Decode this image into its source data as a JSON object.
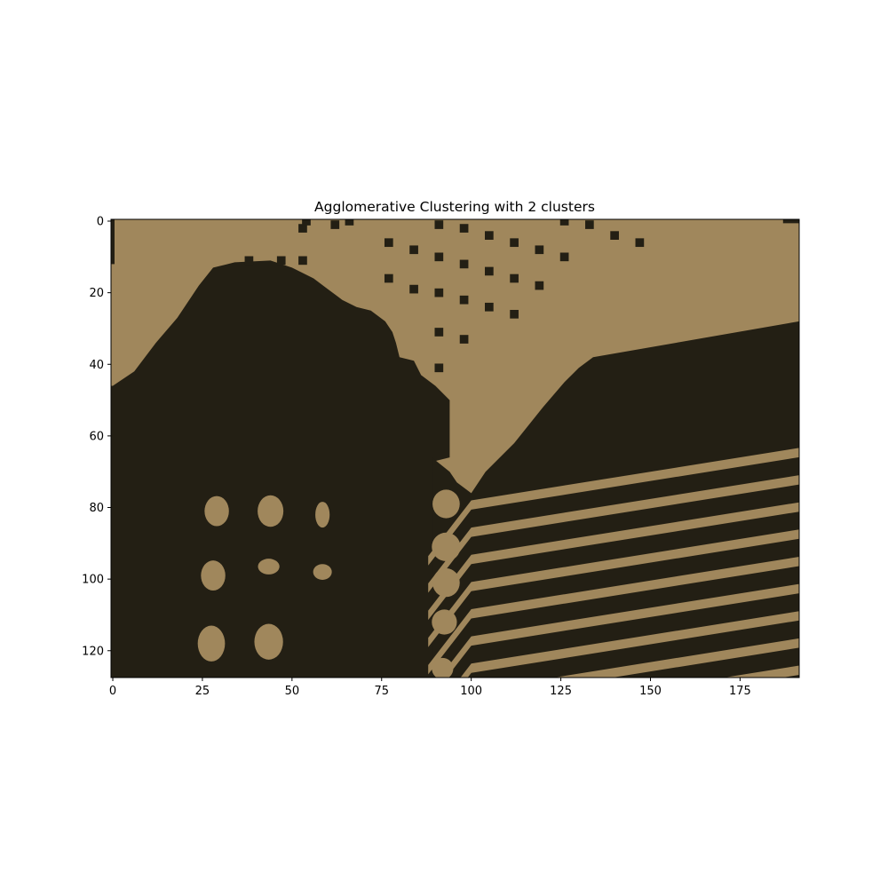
{
  "chart_data": {
    "type": "heatmap",
    "title": "Agglomerative Clustering with 2 clusters",
    "xlabel": "",
    "ylabel": "",
    "image_width": 192,
    "image_height": 128,
    "xlim": [
      -0.5,
      191.5
    ],
    "ylim": [
      127.5,
      -0.5
    ],
    "x_ticks": [
      0,
      25,
      50,
      75,
      100,
      125,
      150,
      175
    ],
    "y_ticks": [
      0,
      20,
      40,
      60,
      80,
      100,
      120
    ],
    "grid": false,
    "legend": "none",
    "colors": {
      "cluster_light": "#a0875c",
      "cluster_dark": "#231f14"
    },
    "cluster_regions": {
      "background": "cluster_light",
      "dark_shapes": [
        {
          "name": "left-building",
          "polygon": [
            [
              0,
              46
            ],
            [
              6,
              42
            ],
            [
              12,
              34
            ],
            [
              18,
              27
            ],
            [
              24,
              18
            ],
            [
              28,
              13
            ],
            [
              34,
              11.5
            ],
            [
              44,
              11
            ],
            [
              50,
              13
            ],
            [
              56,
              16
            ],
            [
              60,
              19
            ],
            [
              64,
              22
            ],
            [
              68,
              24
            ],
            [
              72,
              25
            ],
            [
              76,
              28
            ],
            [
              78,
              31
            ],
            [
              79,
              34
            ],
            [
              80,
              38
            ],
            [
              84,
              39
            ],
            [
              86,
              43
            ],
            [
              90,
              46
            ],
            [
              94,
              50
            ],
            [
              94,
              66
            ],
            [
              90,
              67
            ],
            [
              90,
              127.5
            ],
            [
              -0.5,
              127.5
            ],
            [
              -0.5,
              46
            ]
          ]
        },
        {
          "name": "lower-middle-wedge",
          "polygon": [
            [
              89,
              66
            ],
            [
              94,
              70
            ],
            [
              96,
              73
            ],
            [
              100,
              76
            ],
            [
              104,
              70
            ],
            [
              112,
              62
            ],
            [
              120,
              52
            ],
            [
              126,
              45
            ],
            [
              130,
              41
            ],
            [
              134,
              38
            ],
            [
              191.5,
              28
            ],
            [
              191.5,
              127.5
            ],
            [
              89,
              127.5
            ]
          ]
        },
        {
          "name": "left-edge-strip",
          "polygon": [
            [
              -0.5,
              -0.5
            ],
            [
              0.5,
              -0.5
            ],
            [
              0.5,
              12
            ],
            [
              -0.5,
              12
            ]
          ]
        },
        {
          "name": "top-corner",
          "polygon": [
            [
              187,
              -0.5
            ],
            [
              191.5,
              -0.5
            ],
            [
              191.5,
              0.6
            ],
            [
              187,
              0.6
            ]
          ]
        }
      ],
      "light_shapes": [
        {
          "type": "ellipse",
          "cx": 29,
          "cy": 81,
          "rx": 3.4,
          "ry": 4.2
        },
        {
          "type": "ellipse",
          "cx": 44,
          "cy": 81,
          "rx": 3.6,
          "ry": 4.4
        },
        {
          "type": "ellipse",
          "cx": 58.5,
          "cy": 82,
          "rx": 2,
          "ry": 3.6
        },
        {
          "type": "ellipse",
          "cx": 28,
          "cy": 99,
          "rx": 3.4,
          "ry": 4.2
        },
        {
          "type": "ellipse",
          "cx": 43.5,
          "cy": 96.5,
          "rx": 3,
          "ry": 2.2
        },
        {
          "type": "ellipse",
          "cx": 58.5,
          "cy": 98,
          "rx": 2.6,
          "ry": 2.2
        },
        {
          "type": "ellipse",
          "cx": 27.5,
          "cy": 118,
          "rx": 3.8,
          "ry": 5
        },
        {
          "type": "ellipse",
          "cx": 43.5,
          "cy": 117.5,
          "rx": 4,
          "ry": 5
        },
        {
          "type": "ellipse",
          "cx": 93,
          "cy": 79,
          "rx": 3.8,
          "ry": 4
        },
        {
          "type": "ellipse",
          "cx": 93,
          "cy": 91,
          "rx": 4,
          "ry": 4
        },
        {
          "type": "ellipse",
          "cx": 93,
          "cy": 101,
          "rx": 3.8,
          "ry": 4
        },
        {
          "type": "ellipse",
          "cx": 92.5,
          "cy": 112,
          "rx": 3.5,
          "ry": 3.5
        },
        {
          "type": "ellipse",
          "cx": 92,
          "cy": 125,
          "rx": 3,
          "ry": 3
        }
      ],
      "dark_dots": [
        [
          77,
          6
        ],
        [
          84,
          8
        ],
        [
          91,
          10
        ],
        [
          98,
          12
        ],
        [
          105,
          14
        ],
        [
          112,
          16
        ],
        [
          77,
          16
        ],
        [
          84,
          19
        ],
        [
          91,
          20
        ],
        [
          98,
          22
        ],
        [
          105,
          24
        ],
        [
          112,
          26
        ],
        [
          91,
          31
        ],
        [
          98,
          33
        ],
        [
          91,
          41
        ],
        [
          98,
          2
        ],
        [
          105,
          4
        ],
        [
          112,
          6
        ],
        [
          119,
          8
        ],
        [
          126,
          10
        ],
        [
          91,
          1
        ],
        [
          126,
          0
        ],
        [
          133,
          1
        ],
        [
          140,
          4
        ],
        [
          147,
          6
        ],
        [
          119,
          18
        ],
        [
          53,
          2
        ],
        [
          53,
          11
        ],
        [
          54,
          0
        ],
        [
          62,
          1
        ],
        [
          66,
          0
        ],
        [
          47,
          11
        ],
        [
          38,
          11
        ]
      ],
      "stripes": {
        "count": 9,
        "knee_x": 100,
        "first_knee_y": 78,
        "stripe_spacing": 7.6,
        "left_slope": -1.3,
        "right_slope": -0.16,
        "light_band_width": 2.6
      }
    }
  }
}
